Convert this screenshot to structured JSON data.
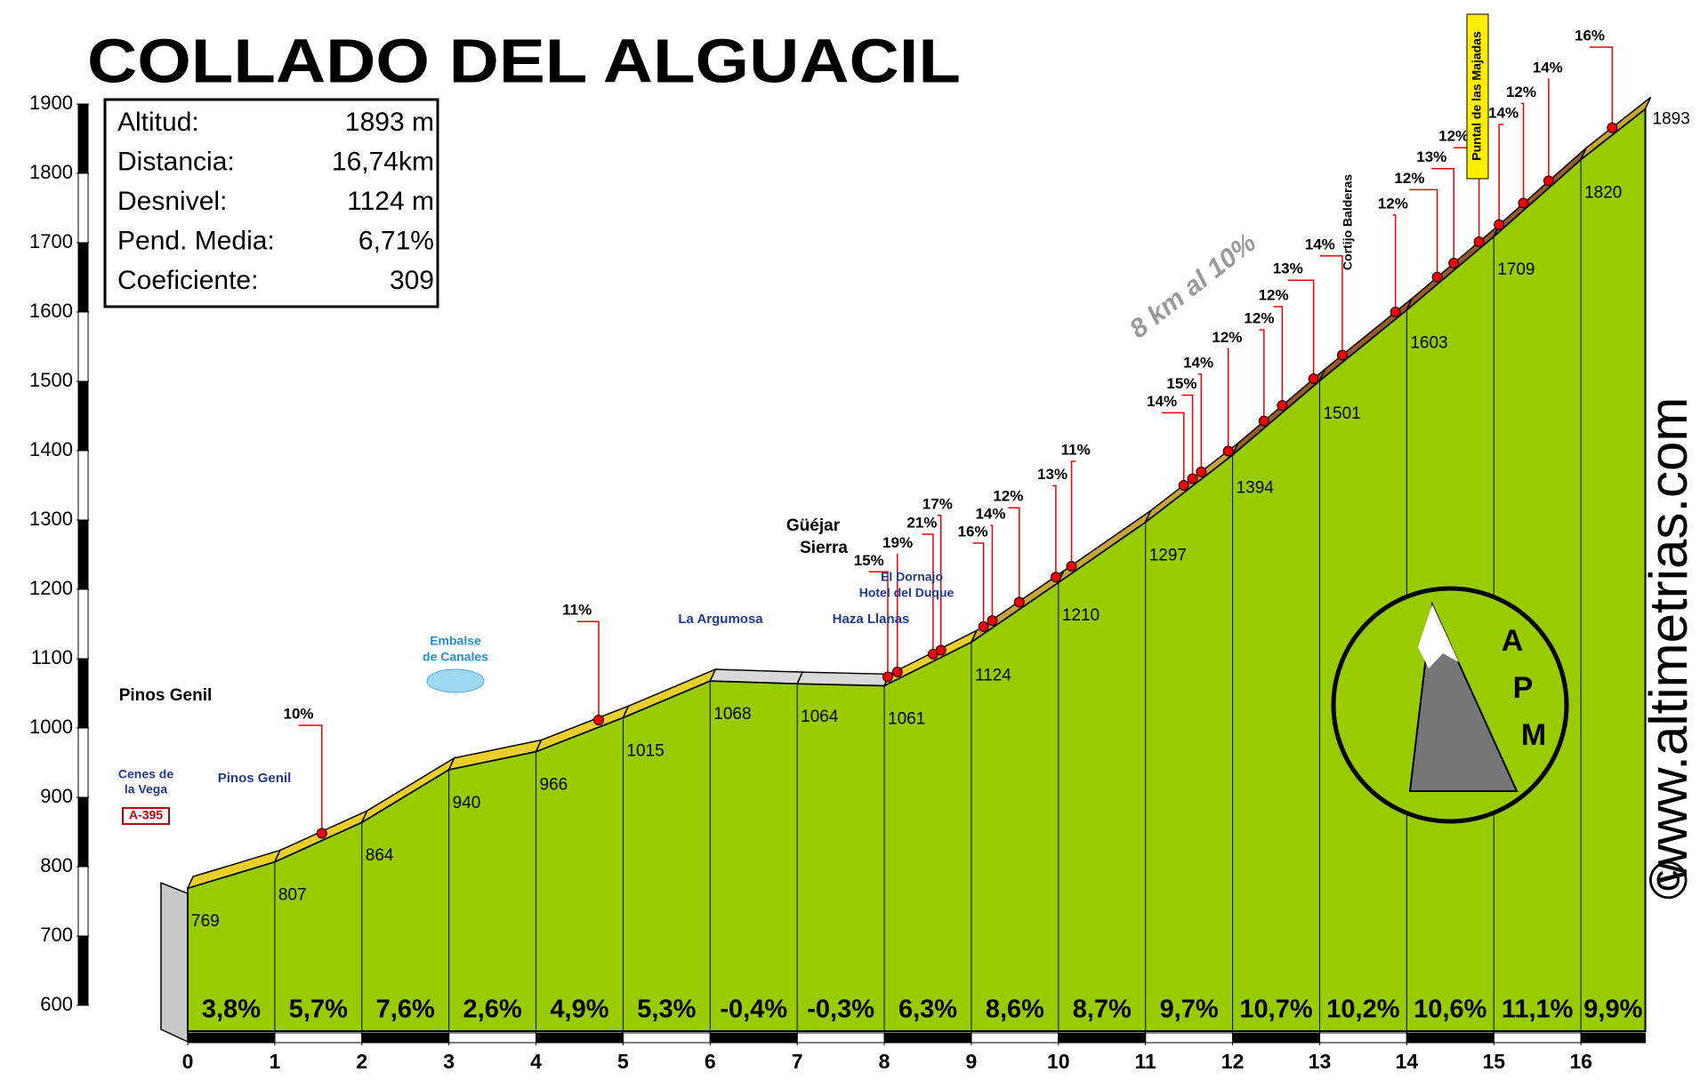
{
  "chart_data": {
    "type": "profile",
    "title": "COLLADO DEL ALGUACIL",
    "stats": [
      [
        "Altitud:",
        "1893 m"
      ],
      [
        "Distancia:",
        "16,74km"
      ],
      [
        "Desnivel:",
        "1124 m"
      ],
      [
        "Pend. Media:",
        "6,71%"
      ],
      [
        "Coeficiente:",
        "309"
      ]
    ],
    "x": [
      0,
      1,
      2,
      3,
      4,
      5,
      6,
      7,
      8,
      9,
      10,
      11,
      12,
      13,
      14,
      15,
      16,
      16.74
    ],
    "values": [
      769,
      807,
      864,
      940,
      966,
      1015,
      1068,
      1064,
      1061,
      1124,
      1210,
      1297,
      1394,
      1501,
      1603,
      1709,
      1820,
      1893
    ],
    "grade": {
      "values": [
        3.8,
        5.7,
        7.6,
        2.6,
        4.9,
        5.3,
        -0.4,
        -0.3,
        6.3,
        8.6,
        8.7,
        9.7,
        10.7,
        10.2,
        10.6,
        11.1,
        9.9
      ],
      "value_labels": [
        "3,8%",
        "5,7%",
        "7,6%",
        "2,6%",
        "4,9%",
        "5,3%",
        "-0,4%",
        "-0,3%",
        "6,3%",
        "8,6%",
        "8,7%",
        "9,7%",
        "10,7%",
        "10,2%",
        "10,6%",
        "11,1%",
        "9,9%"
      ]
    },
    "xlim": [
      0,
      17
    ],
    "xticks": [
      0,
      1,
      2,
      3,
      4,
      5,
      6,
      7,
      8,
      9,
      10,
      11,
      12,
      13,
      14,
      15,
      16
    ],
    "ylim": [
      600,
      1900
    ],
    "yticks": [
      600,
      700,
      800,
      900,
      1000,
      1100,
      1200,
      1300,
      1400,
      1500,
      1600,
      1700,
      1800,
      1900
    ],
    "color": "#99cc00",
    "pins": [
      {
        "km": 1.54,
        "label": "10%"
      },
      {
        "km": 4.72,
        "label": "11%"
      },
      {
        "km": 8.04,
        "label": "15%"
      },
      {
        "km": 8.15,
        "label": "19%"
      },
      {
        "km": 8.56,
        "label": "21%"
      },
      {
        "km": 8.65,
        "label": "17%"
      },
      {
        "km": 9.14,
        "label": "16%"
      },
      {
        "km": 9.24,
        "label": "14%"
      },
      {
        "km": 9.55,
        "label": "12%"
      },
      {
        "km": 9.97,
        "label": "13%"
      },
      {
        "km": 10.15,
        "label": "11%"
      },
      {
        "km": 11.44,
        "label": "14%"
      },
      {
        "km": 11.54,
        "label": "15%"
      },
      {
        "km": 11.64,
        "label": "14%"
      },
      {
        "km": 11.95,
        "label": "12%"
      },
      {
        "km": 12.36,
        "label": "12%"
      },
      {
        "km": 12.57,
        "label": "12%"
      },
      {
        "km": 12.93,
        "label": "13%"
      },
      {
        "km": 13.26,
        "label": "14%"
      },
      {
        "km": 13.87,
        "label": "12%"
      },
      {
        "km": 14.35,
        "label": "12%"
      },
      {
        "km": 14.54,
        "label": "13%"
      },
      {
        "km": 14.83,
        "label": "12%"
      },
      {
        "km": 15.06,
        "label": "14%"
      },
      {
        "km": 15.34,
        "label": "12%"
      },
      {
        "km": 15.63,
        "label": "14%"
      },
      {
        "km": 16.36,
        "label": "16%"
      }
    ],
    "places": [
      "Pinos Genil",
      "Cenes de",
      "la Vega",
      "A-395",
      "Pinos Genil",
      "Embalse",
      "de Canales",
      "La Argumosa",
      "Güéjar",
      "Sierra",
      "El Dornajo",
      "Hotel del Duque",
      "Haza Llanas"
    ],
    "vertical_places": [
      "Cortijo Balderas",
      "Puntal de las Majadas"
    ],
    "annotation": "8 km al 10%",
    "website": "www.altimetrias.com",
    "copyright": "©",
    "logo": [
      "A",
      "P",
      "M"
    ]
  }
}
